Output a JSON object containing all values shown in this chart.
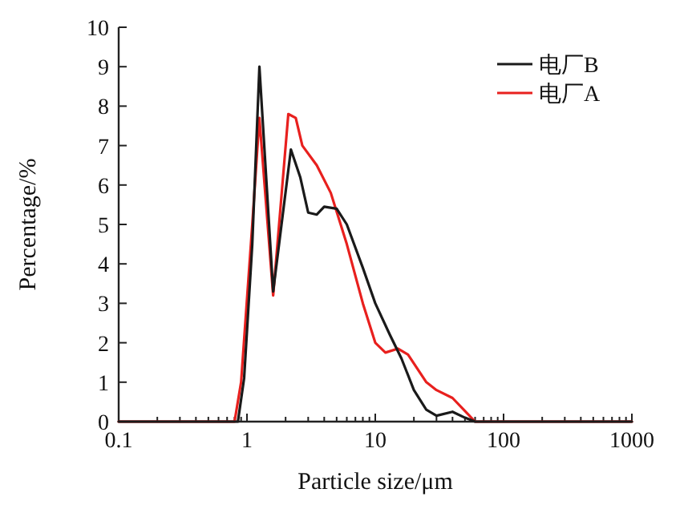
{
  "chart_data": {
    "type": "line",
    "xlabel": "Particle size/μm",
    "ylabel": "Percentage/%",
    "log": "x",
    "xlim": [
      0.1,
      1000
    ],
    "xticks": [
      0.1,
      1,
      10,
      100,
      1000
    ],
    "ylim": [
      0,
      10
    ],
    "yticks": [
      0,
      1,
      2,
      3,
      4,
      5,
      6,
      7,
      8,
      9,
      10
    ],
    "grid": false,
    "legend": "top right",
    "marker": "none",
    "line_style": "solid",
    "series": [
      {
        "name": "电厂B",
        "color": "#1a1a1a",
        "x": [
          0.1,
          0.85,
          0.95,
          1.1,
          1.25,
          1.6,
          2.2,
          2.6,
          3.0,
          3.5,
          4,
          5,
          6,
          8,
          10,
          13,
          16,
          20,
          25,
          30,
          40,
          50,
          60,
          1000
        ],
        "values": [
          0,
          0,
          1.1,
          4.5,
          9.0,
          3.3,
          6.9,
          6.2,
          5.3,
          5.25,
          5.45,
          5.4,
          5.0,
          3.9,
          3.0,
          2.2,
          1.6,
          0.8,
          0.3,
          0.15,
          0.25,
          0.1,
          0,
          0
        ]
      },
      {
        "name": "电厂A",
        "color": "#e8201e",
        "x": [
          0.1,
          0.8,
          0.9,
          1.1,
          1.25,
          1.6,
          2.1,
          2.4,
          2.7,
          3.5,
          4.5,
          6,
          8,
          10,
          12,
          15,
          18,
          25,
          30,
          40,
          60,
          1000
        ],
        "values": [
          0,
          0,
          1.0,
          5.0,
          7.7,
          3.2,
          7.8,
          7.7,
          7.0,
          6.5,
          5.8,
          4.5,
          3.0,
          2.0,
          1.75,
          1.85,
          1.7,
          1.0,
          0.8,
          0.6,
          0,
          0
        ]
      }
    ]
  }
}
